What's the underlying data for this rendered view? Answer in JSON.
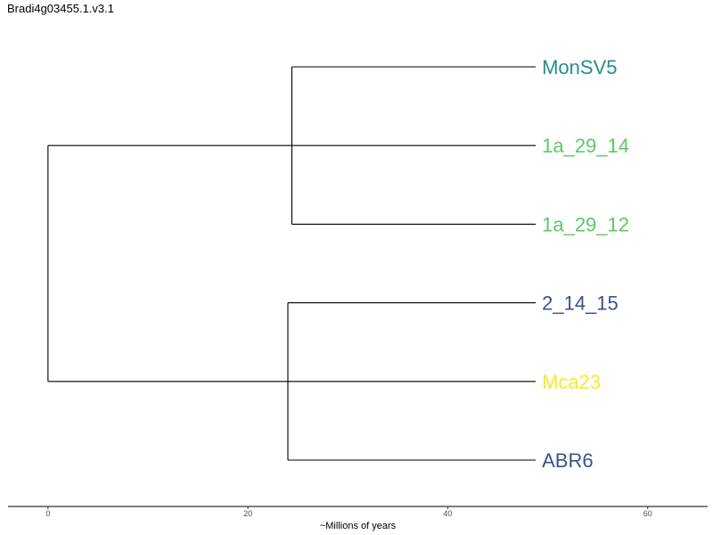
{
  "title": "Bradi4g03455.1.v3.1",
  "chart_data": {
    "type": "dendrogram",
    "xlabel": "~Millions of years",
    "xlim": [
      -4,
      66
    ],
    "ticks": [
      0,
      20,
      40,
      60
    ],
    "tips": [
      {
        "name": "MonSV5",
        "color": "#21908C"
      },
      {
        "name": "1a_29_14",
        "color": "#5DC863"
      },
      {
        "name": "1a_29_12",
        "color": "#5DC863"
      },
      {
        "name": "2_14_15",
        "color": "#3B528B"
      },
      {
        "name": "Mca23",
        "color": "#FDE725"
      },
      {
        "name": "ABR6",
        "color": "#3B528B"
      }
    ],
    "tip_time": 48.8,
    "tree": {
      "age": 0,
      "children": [
        {
          "age": 24.4,
          "children": [
            {
              "tip": 0
            },
            {
              "tip": 1
            },
            {
              "tip": 2
            }
          ]
        },
        {
          "age": 24.0,
          "children": [
            {
              "tip": 3
            },
            {
              "tip": 4
            },
            {
              "tip": 5
            }
          ]
        }
      ]
    }
  }
}
